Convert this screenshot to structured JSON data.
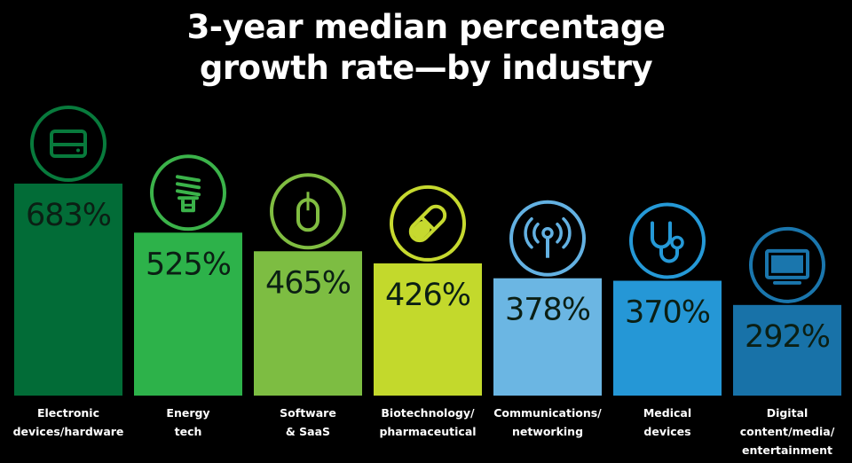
{
  "chart_data": {
    "type": "bar",
    "title_lines": [
      "3-year median percentage",
      "growth rate—by industry"
    ],
    "categories": [
      [
        "Electronic",
        "devices/hardware"
      ],
      [
        "Energy",
        "tech"
      ],
      [
        "Software",
        "& SaaS"
      ],
      [
        "Biotechnology/",
        "pharmaceutical"
      ],
      [
        "Communications/",
        "networking"
      ],
      [
        "Medical",
        "devices"
      ],
      [
        "Digital",
        "content/media/",
        "entertainment"
      ]
    ],
    "values": [
      683,
      525,
      465,
      426,
      378,
      370,
      292
    ],
    "value_labels": [
      "683%",
      "525%",
      "465%",
      "426%",
      "378%",
      "370%",
      "292%"
    ],
    "icons": [
      "hard-drive-icon",
      "light-bulb-icon",
      "computer-mouse-icon",
      "pill-icon",
      "broadcast-antenna-icon",
      "stethoscope-icon",
      "monitor-icon"
    ],
    "colors": [
      "#026c37",
      "#2db24a",
      "#7dbd42",
      "#c3d92c",
      "#6bb6e3",
      "#2597d6",
      "#1872a8"
    ],
    "icon_colors": [
      "#087a3c",
      "#3bb34a",
      "#80bd41",
      "#c6d92f",
      "#63b1e2",
      "#2599d7",
      "#1a76ad"
    ],
    "unit": "%",
    "ylim": [
      0,
      683
    ],
    "grid": false,
    "legend": "none"
  }
}
